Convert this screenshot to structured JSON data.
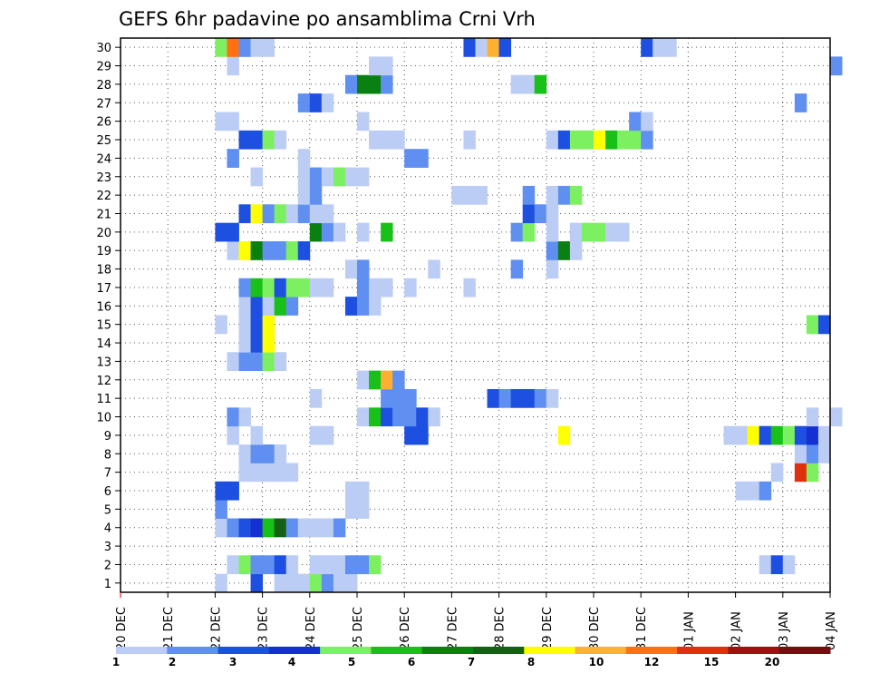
{
  "chart_data": {
    "type": "heatmap",
    "title": "GEFS 6hr padavine po ansamblima Crni Vrh",
    "xlabel": "",
    "ylabel": "",
    "ylim": [
      1,
      30
    ],
    "x_ticks": [
      "20 DEC",
      "21 DEC",
      "22 DEC",
      "23 DEC",
      "24 DEC",
      "25 DEC",
      "26 DEC",
      "27 DEC",
      "28 DEC",
      "29 DEC",
      "30 DEC",
      "31 DEC",
      "01 JAN",
      "02 JAN",
      "03 JAN",
      "04 JAN"
    ],
    "y_ticks": [
      "1",
      "2",
      "3",
      "4",
      "5",
      "6",
      "7",
      "8",
      "9",
      "10",
      "11",
      "12",
      "13",
      "14",
      "15",
      "16",
      "17",
      "18",
      "19",
      "20",
      "21",
      "22",
      "23",
      "24",
      "25",
      "26",
      "27",
      "28",
      "29",
      "30"
    ],
    "grid": true,
    "legend": {
      "position": "bottom",
      "labels": [
        "1",
        "2",
        "3",
        "4",
        "5",
        "6",
        "7",
        "8",
        "10",
        "12",
        "15",
        "20"
      ],
      "colors": [
        "#bccdf5",
        "#5f8ff0",
        "#1d4fe0",
        "#1530d0",
        "#7cf060",
        "#18c018",
        "#0a8010",
        "#156015",
        "#ffff00",
        "#ffb030",
        "#ff7010",
        "#e03010",
        "#a01010",
        "#701010"
      ]
    },
    "units": "6-hour step index (0 = 20 DEC 00h, 4 steps per day); value = precipitation class 1..14",
    "cells": [
      [
        1,
        8,
        1
      ],
      [
        1,
        11,
        3
      ],
      [
        1,
        13,
        1
      ],
      [
        1,
        14,
        1
      ],
      [
        1,
        15,
        1
      ],
      [
        1,
        16,
        5
      ],
      [
        1,
        17,
        2
      ],
      [
        1,
        18,
        1
      ],
      [
        1,
        19,
        1
      ],
      [
        2,
        9,
        1
      ],
      [
        2,
        10,
        5
      ],
      [
        2,
        11,
        2
      ],
      [
        2,
        12,
        2
      ],
      [
        2,
        13,
        3
      ],
      [
        2,
        14,
        1
      ],
      [
        2,
        16,
        1
      ],
      [
        2,
        17,
        1
      ],
      [
        2,
        18,
        1
      ],
      [
        2,
        19,
        2
      ],
      [
        2,
        20,
        2
      ],
      [
        2,
        21,
        5
      ],
      [
        2,
        54,
        1
      ],
      [
        2,
        55,
        3
      ],
      [
        2,
        56,
        1
      ],
      [
        4,
        8,
        1
      ],
      [
        4,
        9,
        2
      ],
      [
        4,
        10,
        3
      ],
      [
        4,
        11,
        4
      ],
      [
        4,
        12,
        6
      ],
      [
        4,
        13,
        8
      ],
      [
        4,
        14,
        2
      ],
      [
        4,
        15,
        1
      ],
      [
        4,
        16,
        1
      ],
      [
        4,
        17,
        1
      ],
      [
        4,
        18,
        2
      ],
      [
        5,
        8,
        2
      ],
      [
        5,
        19,
        1
      ],
      [
        5,
        20,
        1
      ],
      [
        6,
        8,
        3
      ],
      [
        6,
        9,
        3
      ],
      [
        6,
        19,
        1
      ],
      [
        6,
        20,
        1
      ],
      [
        6,
        52,
        1
      ],
      [
        6,
        53,
        1
      ],
      [
        6,
        54,
        2
      ],
      [
        7,
        10,
        1
      ],
      [
        7,
        11,
        1
      ],
      [
        7,
        12,
        1
      ],
      [
        7,
        13,
        1
      ],
      [
        7,
        14,
        1
      ],
      [
        7,
        55,
        1
      ],
      [
        7,
        57,
        12
      ],
      [
        7,
        58,
        5
      ],
      [
        8,
        10,
        1
      ],
      [
        8,
        11,
        2
      ],
      [
        8,
        12,
        2
      ],
      [
        8,
        13,
        1
      ],
      [
        8,
        57,
        1
      ],
      [
        8,
        58,
        2
      ],
      [
        8,
        59,
        1
      ],
      [
        9,
        9,
        1
      ],
      [
        9,
        11,
        1
      ],
      [
        9,
        16,
        1
      ],
      [
        9,
        17,
        1
      ],
      [
        9,
        24,
        3
      ],
      [
        9,
        25,
        3
      ],
      [
        9,
        37,
        9
      ],
      [
        9,
        51,
        1
      ],
      [
        9,
        52,
        1
      ],
      [
        9,
        53,
        9
      ],
      [
        9,
        54,
        3
      ],
      [
        9,
        55,
        6
      ],
      [
        9,
        56,
        5
      ],
      [
        9,
        57,
        3
      ],
      [
        9,
        58,
        4
      ],
      [
        9,
        59,
        1
      ],
      [
        10,
        9,
        2
      ],
      [
        10,
        10,
        1
      ],
      [
        10,
        20,
        1
      ],
      [
        10,
        21,
        6
      ],
      [
        10,
        22,
        3
      ],
      [
        10,
        23,
        2
      ],
      [
        10,
        24,
        2
      ],
      [
        10,
        25,
        3
      ],
      [
        10,
        26,
        1
      ],
      [
        10,
        58,
        1
      ],
      [
        10,
        60,
        1
      ],
      [
        11,
        16,
        1
      ],
      [
        11,
        22,
        2
      ],
      [
        11,
        23,
        2
      ],
      [
        11,
        24,
        2
      ],
      [
        11,
        31,
        3
      ],
      [
        11,
        32,
        2
      ],
      [
        11,
        33,
        3
      ],
      [
        11,
        34,
        3
      ],
      [
        11,
        35,
        2
      ],
      [
        11,
        36,
        1
      ],
      [
        12,
        20,
        1
      ],
      [
        12,
        21,
        6
      ],
      [
        12,
        22,
        10
      ],
      [
        12,
        23,
        2
      ],
      [
        13,
        9,
        1
      ],
      [
        13,
        10,
        2
      ],
      [
        13,
        11,
        2
      ],
      [
        13,
        12,
        5
      ],
      [
        13,
        13,
        1
      ],
      [
        14,
        10,
        1
      ],
      [
        14,
        11,
        3
      ],
      [
        14,
        12,
        9
      ],
      [
        15,
        8,
        1
      ],
      [
        15,
        10,
        1
      ],
      [
        15,
        11,
        3
      ],
      [
        15,
        12,
        9
      ],
      [
        15,
        58,
        5
      ],
      [
        15,
        59,
        3
      ],
      [
        16,
        10,
        1
      ],
      [
        16,
        11,
        3
      ],
      [
        16,
        12,
        1
      ],
      [
        16,
        13,
        6
      ],
      [
        16,
        14,
        2
      ],
      [
        16,
        19,
        3
      ],
      [
        16,
        20,
        2
      ],
      [
        16,
        21,
        1
      ],
      [
        17,
        10,
        2
      ],
      [
        17,
        11,
        6
      ],
      [
        17,
        12,
        5
      ],
      [
        17,
        13,
        3
      ],
      [
        17,
        14,
        5
      ],
      [
        17,
        15,
        5
      ],
      [
        17,
        16,
        1
      ],
      [
        17,
        17,
        1
      ],
      [
        17,
        20,
        2
      ],
      [
        17,
        21,
        1
      ],
      [
        17,
        22,
        1
      ],
      [
        17,
        24,
        1
      ],
      [
        17,
        29,
        1
      ],
      [
        18,
        19,
        1
      ],
      [
        18,
        20,
        2
      ],
      [
        18,
        26,
        1
      ],
      [
        18,
        33,
        2
      ],
      [
        18,
        36,
        1
      ],
      [
        19,
        9,
        1
      ],
      [
        19,
        10,
        9
      ],
      [
        19,
        11,
        7
      ],
      [
        19,
        12,
        2
      ],
      [
        19,
        13,
        2
      ],
      [
        19,
        14,
        5
      ],
      [
        19,
        15,
        3
      ],
      [
        19,
        36,
        2
      ],
      [
        19,
        37,
        7
      ],
      [
        19,
        38,
        1
      ],
      [
        20,
        8,
        3
      ],
      [
        20,
        9,
        3
      ],
      [
        20,
        16,
        7
      ],
      [
        20,
        17,
        2
      ],
      [
        20,
        18,
        1
      ],
      [
        20,
        20,
        1
      ],
      [
        20,
        22,
        6
      ],
      [
        20,
        33,
        2
      ],
      [
        20,
        34,
        5
      ],
      [
        20,
        36,
        1
      ],
      [
        20,
        38,
        1
      ],
      [
        20,
        39,
        5
      ],
      [
        20,
        40,
        5
      ],
      [
        20,
        41,
        1
      ],
      [
        20,
        42,
        1
      ],
      [
        21,
        10,
        3
      ],
      [
        21,
        11,
        9
      ],
      [
        21,
        12,
        2
      ],
      [
        21,
        13,
        5
      ],
      [
        21,
        14,
        1
      ],
      [
        21,
        15,
        2
      ],
      [
        21,
        16,
        1
      ],
      [
        21,
        17,
        1
      ],
      [
        21,
        34,
        3
      ],
      [
        21,
        35,
        2
      ],
      [
        21,
        36,
        1
      ],
      [
        22,
        15,
        1
      ],
      [
        22,
        16,
        2
      ],
      [
        22,
        28,
        1
      ],
      [
        22,
        29,
        1
      ],
      [
        22,
        30,
        1
      ],
      [
        22,
        34,
        2
      ],
      [
        22,
        36,
        1
      ],
      [
        22,
        37,
        2
      ],
      [
        22,
        38,
        5
      ],
      [
        23,
        11,
        1
      ],
      [
        23,
        15,
        1
      ],
      [
        23,
        16,
        2
      ],
      [
        23,
        17,
        1
      ],
      [
        23,
        18,
        5
      ],
      [
        23,
        19,
        1
      ],
      [
        23,
        20,
        1
      ],
      [
        24,
        9,
        2
      ],
      [
        24,
        15,
        1
      ],
      [
        24,
        24,
        2
      ],
      [
        24,
        25,
        2
      ],
      [
        25,
        10,
        3
      ],
      [
        25,
        11,
        3
      ],
      [
        25,
        12,
        5
      ],
      [
        25,
        13,
        1
      ],
      [
        25,
        21,
        1
      ],
      [
        25,
        22,
        1
      ],
      [
        25,
        23,
        1
      ],
      [
        25,
        29,
        1
      ],
      [
        25,
        36,
        1
      ],
      [
        25,
        37,
        3
      ],
      [
        25,
        38,
        5
      ],
      [
        25,
        39,
        5
      ],
      [
        25,
        40,
        9
      ],
      [
        25,
        41,
        6
      ],
      [
        25,
        42,
        5
      ],
      [
        25,
        43,
        5
      ],
      [
        25,
        44,
        2
      ],
      [
        26,
        8,
        1
      ],
      [
        26,
        9,
        1
      ],
      [
        26,
        20,
        1
      ],
      [
        26,
        43,
        2
      ],
      [
        26,
        44,
        1
      ],
      [
        27,
        15,
        2
      ],
      [
        27,
        16,
        3
      ],
      [
        27,
        17,
        1
      ],
      [
        27,
        57,
        2
      ],
      [
        28,
        19,
        2
      ],
      [
        28,
        20,
        7
      ],
      [
        28,
        21,
        7
      ],
      [
        28,
        22,
        2
      ],
      [
        28,
        33,
        1
      ],
      [
        28,
        34,
        1
      ],
      [
        28,
        35,
        6
      ],
      [
        29,
        9,
        1
      ],
      [
        29,
        21,
        1
      ],
      [
        29,
        22,
        1
      ],
      [
        29,
        60,
        2
      ],
      [
        30,
        8,
        5
      ],
      [
        30,
        9,
        11
      ],
      [
        30,
        10,
        2
      ],
      [
        30,
        11,
        1
      ],
      [
        30,
        12,
        1
      ],
      [
        30,
        29,
        3
      ],
      [
        30,
        30,
        1
      ],
      [
        30,
        31,
        10
      ],
      [
        30,
        32,
        3
      ],
      [
        30,
        44,
        3
      ],
      [
        30,
        45,
        1
      ],
      [
        30,
        46,
        1
      ]
    ]
  }
}
